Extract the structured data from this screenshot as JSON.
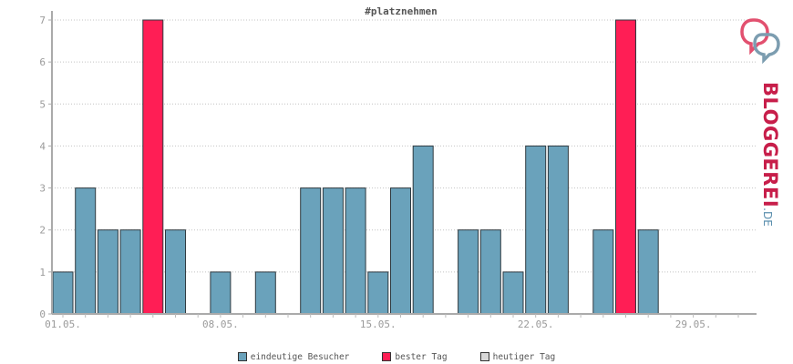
{
  "chart_data": {
    "type": "bar",
    "title": "#platznehmen",
    "xlabel": "",
    "ylabel": "",
    "ylim": [
      0,
      7
    ],
    "yticks": [
      "0",
      "1",
      "2",
      "3",
      "4",
      "5",
      "6",
      "7"
    ],
    "xticks": [
      {
        "day": 1,
        "label": "01.05."
      },
      {
        "day": 8,
        "label": "08.05."
      },
      {
        "day": 15,
        "label": "15.05."
      },
      {
        "day": 22,
        "label": "22.05."
      },
      {
        "day": 29,
        "label": "29.05."
      }
    ],
    "grid": true,
    "days": [
      1,
      2,
      3,
      4,
      5,
      6,
      7,
      8,
      9,
      10,
      11,
      12,
      13,
      14,
      15,
      16,
      17,
      18,
      19,
      20,
      21,
      22,
      23,
      24,
      25,
      26,
      27,
      28,
      29,
      30,
      31
    ],
    "series": [
      {
        "name": "eindeutige Besucher",
        "color": "#6aa2bb",
        "values": [
          1,
          3,
          2,
          2,
          7,
          2,
          0,
          1,
          0,
          1,
          0,
          3,
          3,
          3,
          1,
          3,
          4,
          0,
          2,
          2,
          1,
          4,
          4,
          0,
          2,
          7,
          2,
          0,
          0,
          0,
          0
        ]
      }
    ],
    "best_days": [
      5,
      26
    ],
    "best_color": "#ff1e55",
    "today_color": "#d8d8d8"
  },
  "legend": {
    "items": [
      {
        "label": "eindeutige Besucher",
        "color": "#6aa2bb"
      },
      {
        "label": "bester Tag",
        "color": "#ff1e55"
      },
      {
        "label": "heutiger Tag",
        "color": "#d8d8d8"
      }
    ]
  },
  "logo": {
    "name": "BLOGGEREI",
    "tld": ".DE"
  }
}
